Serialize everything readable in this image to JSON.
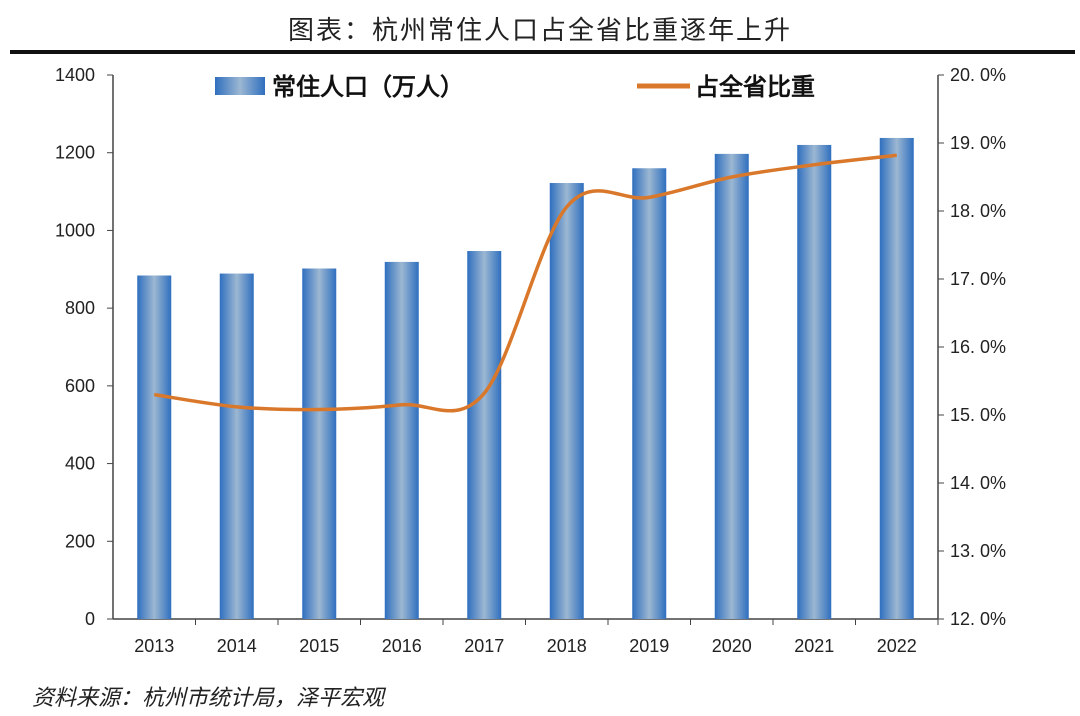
{
  "title": "图表：杭州常住人口占全省比重逐年上升",
  "source": "资料来源：杭州市统计局，泽平宏观",
  "chart_data": {
    "type": "bar+line",
    "title": "图表：杭州常住人口占全省比重逐年上升",
    "categories": [
      "2013",
      "2014",
      "2015",
      "2016",
      "2017",
      "2018",
      "2019",
      "2020",
      "2021",
      "2022"
    ],
    "series": [
      {
        "name": "常住人口（万人）",
        "type": "bar",
        "axis": "left",
        "color": "#3a78c0",
        "values": [
          884,
          889,
          902,
          919,
          947,
          1122,
          1160,
          1197,
          1220,
          1238
        ]
      },
      {
        "name": "占全省比重",
        "type": "line",
        "axis": "right",
        "color": "#d9782a",
        "smooth": true,
        "values": [
          15.3,
          15.12,
          15.08,
          15.15,
          15.32,
          18.06,
          18.2,
          18.5,
          18.68,
          18.82
        ]
      }
    ],
    "left_axis": {
      "min": 0,
      "max": 1400,
      "ticks": [
        "0",
        "200",
        "400",
        "600",
        "800",
        "1000",
        "1200",
        "1400"
      ]
    },
    "right_axis": {
      "min": 12,
      "max": 20,
      "ticks": [
        "12.0%",
        "13.0%",
        "14.0%",
        "15.0%",
        "16.0%",
        "17.0%",
        "18.0%",
        "19.0%",
        "20.0%"
      ]
    },
    "grid": false,
    "legend": "top"
  }
}
